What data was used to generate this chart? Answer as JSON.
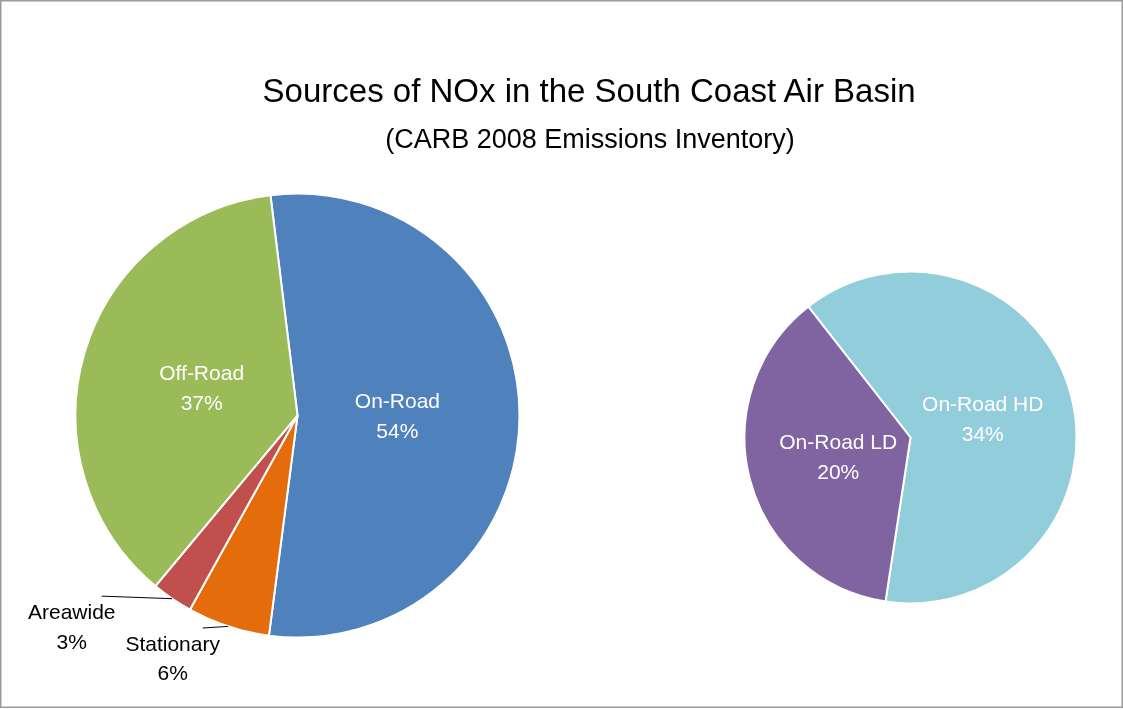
{
  "chart_data": [
    {
      "type": "pie",
      "title": "Sources of NOx in the South Coast Air Basin",
      "subtitle": "(CARB 2008 Emissions Inventory)",
      "categories": [
        "On-Road",
        "Stationary",
        "Areawide",
        "Off-Road"
      ],
      "values": [
        54,
        6,
        3,
        37
      ],
      "value_labels": [
        "54%",
        "6%",
        "3%",
        "37%"
      ],
      "colors": [
        "#4f81bd",
        "#e46c0a",
        "#c0504d",
        "#9bbb59"
      ]
    },
    {
      "type": "pie",
      "categories": [
        "On-Road HD",
        "On-Road LD"
      ],
      "values": [
        34,
        20
      ],
      "value_labels": [
        "34%",
        "20%"
      ],
      "colors": [
        "#92cddc",
        "#8064a2"
      ]
    }
  ]
}
